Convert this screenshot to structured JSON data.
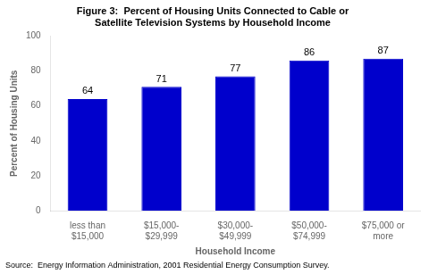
{
  "chart_data": {
    "type": "bar",
    "title": "Figure 3:  Percent of Housing Units Connected to Cable or\nSatellite Television Systems by Household Income",
    "categories": [
      "less than\n$15,000",
      "$15,000-\n$29,999",
      "$30,000-\n$49,999",
      "$50,000-\n$74,999",
      "$75,000 or\nmore"
    ],
    "values": [
      64,
      71,
      77,
      86,
      87
    ],
    "color": "#0000CC",
    "xlabel": "Household Income",
    "ylabel": "Percent of Housing Units",
    "ylim": [
      0,
      100
    ],
    "yticks": [
      0,
      20,
      40,
      60,
      80,
      100
    ],
    "grid": false,
    "data_labels": true,
    "annotations": [
      "Source:  Energy Information Administration, 2001 Residential Energy Consumption Survey."
    ]
  }
}
